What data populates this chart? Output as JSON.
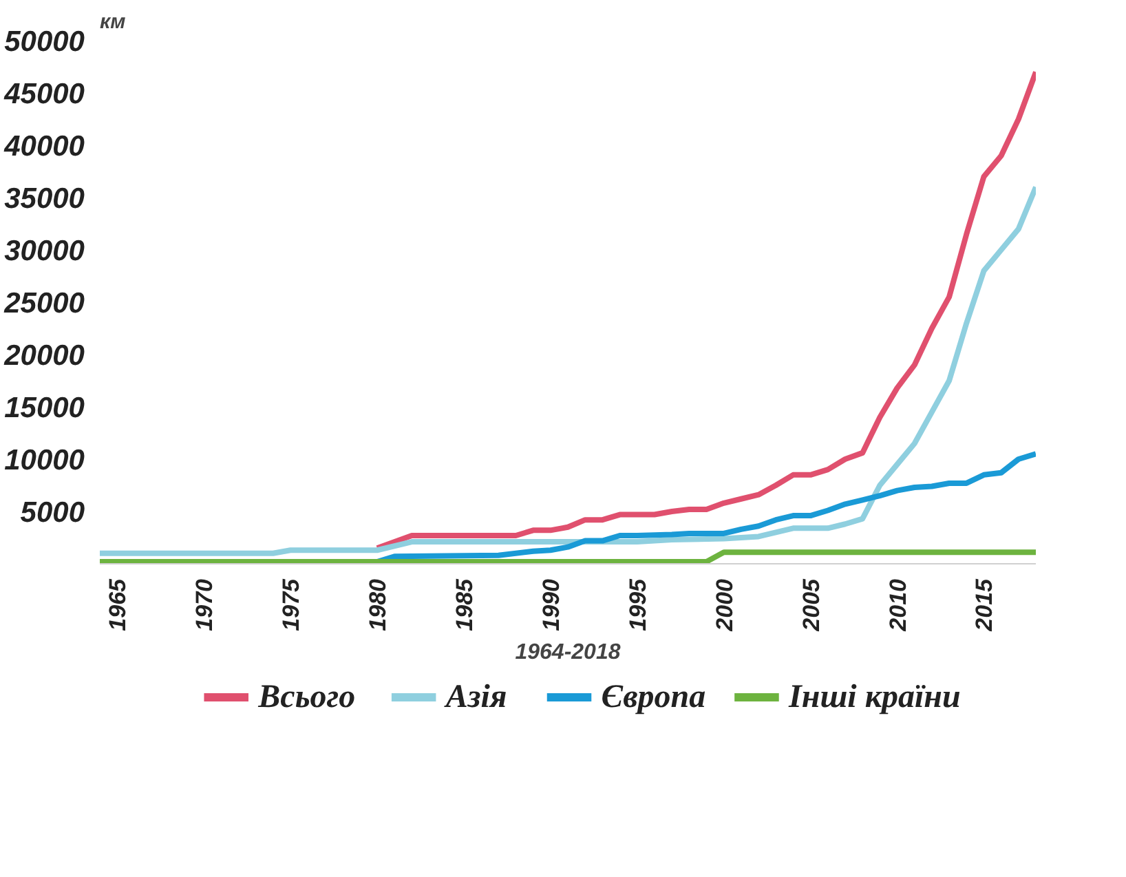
{
  "chart_data": {
    "type": "line",
    "ylabel": "км",
    "xlabel": "1964-2018",
    "xlim": [
      1964,
      2018
    ],
    "xticks": [
      1965,
      1970,
      1975,
      1980,
      1985,
      1990,
      1995,
      2000,
      2005,
      2010,
      2015
    ],
    "ylim": [
      0,
      50000
    ],
    "yticks": [
      5000,
      10000,
      15000,
      20000,
      25000,
      30000,
      35000,
      40000,
      45000,
      50000
    ],
    "grid": false,
    "legend": "bottom",
    "line_style": "solid",
    "marker": "none",
    "series": [
      {
        "name": "Всього",
        "color": "#e0506e",
        "x": [
          1980,
          1982,
          1988,
          1989,
          1990,
          1991,
          1992,
          1993,
          1994,
          1995,
          1996,
          1997,
          1998,
          1999,
          2000,
          2001,
          2002,
          2003,
          2004,
          2005,
          2006,
          2007,
          2008,
          2009,
          2010,
          2011,
          2012,
          2013,
          2014,
          2015,
          2016,
          2017,
          2018
        ],
        "values": [
          1500,
          2700,
          2700,
          3200,
          3200,
          3500,
          4200,
          4200,
          4700,
          4700,
          4700,
          5000,
          5200,
          5200,
          5800,
          6200,
          6600,
          7500,
          8500,
          8500,
          9000,
          10000,
          10600,
          14000,
          16800,
          19000,
          22500,
          25500,
          31500,
          37000,
          39000,
          42500,
          47000
        ]
      },
      {
        "name": "Азія",
        "color": "#8fcfdf",
        "x": [
          1964,
          1974,
          1975,
          1980,
          1982,
          1995,
          1997,
          2000,
          2002,
          2003,
          2004,
          2006,
          2007,
          2008,
          2009,
          2010,
          2011,
          2012,
          2013,
          2014,
          2015,
          2016,
          2017,
          2018
        ],
        "values": [
          1000,
          1000,
          1300,
          1300,
          2100,
          2100,
          2300,
          2400,
          2600,
          3000,
          3400,
          3400,
          3800,
          4300,
          7500,
          9500,
          11500,
          14500,
          17500,
          23000,
          28000,
          30000,
          32000,
          36000
        ]
      },
      {
        "name": "Європа",
        "color": "#1a9ad6",
        "x": [
          1980,
          1981,
          1987,
          1989,
          1990,
          1991,
          1992,
          1993,
          1994,
          1995,
          1997,
          1998,
          2000,
          2001,
          2002,
          2003,
          2004,
          2005,
          2006,
          2007,
          2008,
          2009,
          2010,
          2011,
          2012,
          2013,
          2014,
          2015,
          2016,
          2017,
          2018
        ],
        "values": [
          200,
          700,
          800,
          1200,
          1300,
          1600,
          2200,
          2200,
          2700,
          2700,
          2800,
          2900,
          2900,
          3300,
          3600,
          4200,
          4600,
          4600,
          5100,
          5700,
          6100,
          6500,
          7000,
          7300,
          7400,
          7700,
          7700,
          8500,
          8700,
          10000,
          10500
        ]
      },
      {
        "name": "Інші країни",
        "color": "#6db33f",
        "x": [
          1964,
          1999,
          2000,
          2018
        ],
        "values": [
          200,
          200,
          1100,
          1100
        ]
      }
    ]
  }
}
